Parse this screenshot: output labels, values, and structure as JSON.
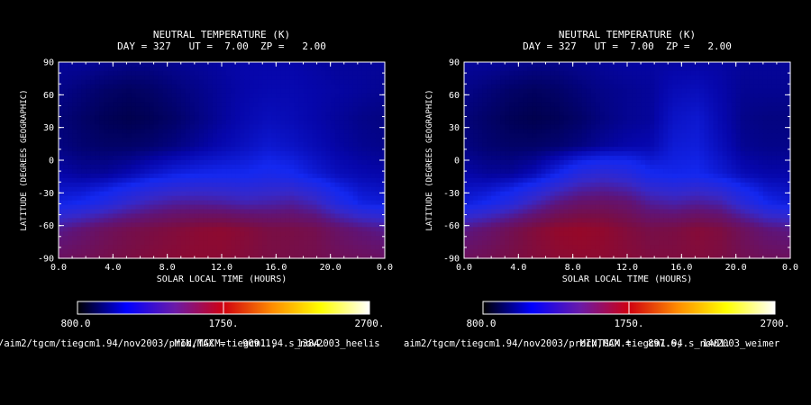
{
  "colorbar": {
    "min_label": "800.0",
    "mid_label": "1750.",
    "max_label": "2700.",
    "min": 800,
    "max": 2700,
    "stops": [
      "#000000",
      "#0000ff",
      "#6a1aa8",
      "#d00010",
      "#ff8c00",
      "#ffff00",
      "#ffffff"
    ]
  },
  "chart_data": [
    {
      "type": "heatmap",
      "title": "NEUTRAL TEMPERATURE (K)",
      "subtitle": "DAY = 327   UT =  7.00  ZP =   2.00",
      "xlabel": "SOLAR LOCAL TIME (HOURS)",
      "ylabel": "LATITUDE (DEGREES GEOGRAPHIC)",
      "x_ticks": [
        "0.0",
        "4.0",
        "8.0",
        "12.0",
        "16.0",
        "20.0",
        "0.0"
      ],
      "y_ticks": [
        "90",
        "60",
        "30",
        "0",
        "-30",
        "-60",
        "-90"
      ],
      "xlim": [
        0,
        24
      ],
      "ylim": [
        -90,
        90
      ],
      "min_max_label": "MIN,MAX =",
      "min_value": "909.1,",
      "max_value": "1384.",
      "min": 909.1,
      "max": 1384,
      "path_label": "/aim2/tgcm/tiegcm1.94/nov2003/proc/TGCM.tiegcm1.94.s_nov2003_heelis",
      "grid": [
        [
          0.1,
          0.1,
          0.09,
          0.08,
          0.08,
          0.09,
          0.1,
          0.11,
          0.12,
          0.12,
          0.12,
          0.11,
          0.1,
          0.1,
          0.1
        ],
        [
          0.08,
          0.06,
          0.04,
          0.03,
          0.04,
          0.06,
          0.08,
          0.1,
          0.12,
          0.13,
          0.13,
          0.12,
          0.11,
          0.1,
          0.09
        ],
        [
          0.06,
          0.04,
          0.02,
          0.01,
          0.02,
          0.04,
          0.07,
          0.1,
          0.13,
          0.15,
          0.14,
          0.12,
          0.1,
          0.08,
          0.07
        ],
        [
          0.07,
          0.05,
          0.04,
          0.04,
          0.05,
          0.07,
          0.1,
          0.13,
          0.16,
          0.19,
          0.17,
          0.14,
          0.11,
          0.09,
          0.08
        ],
        [
          0.12,
          0.1,
          0.1,
          0.13,
          0.18,
          0.22,
          0.24,
          0.25,
          0.25,
          0.28,
          0.26,
          0.2,
          0.15,
          0.13,
          0.12
        ],
        [
          0.22,
          0.25,
          0.32,
          0.42,
          0.5,
          0.55,
          0.56,
          0.54,
          0.5,
          0.52,
          0.55,
          0.48,
          0.32,
          0.22,
          0.2
        ],
        [
          0.6,
          0.68,
          0.76,
          0.82,
          0.86,
          0.9,
          0.94,
          0.96,
          0.92,
          0.86,
          0.85,
          0.82,
          0.72,
          0.65,
          0.6
        ],
        [
          0.75,
          0.78,
          0.82,
          0.86,
          0.9,
          0.93,
          0.95,
          0.94,
          0.9,
          0.86,
          0.84,
          0.82,
          0.78,
          0.76,
          0.74
        ]
      ]
    },
    {
      "type": "heatmap",
      "title": "NEUTRAL TEMPERATURE (K)",
      "subtitle": "DAY = 327   UT =  7.00  ZP =   2.00",
      "xlabel": "SOLAR LOCAL TIME (HOURS)",
      "ylabel": "LATITUDE (DEGREES GEOGRAPHIC)",
      "x_ticks": [
        "0.0",
        "4.0",
        "8.0",
        "12.0",
        "16.0",
        "20.0",
        "0.0"
      ],
      "y_ticks": [
        "90",
        "60",
        "30",
        "0",
        "-30",
        "-60",
        "-90"
      ],
      "xlim": [
        0,
        24
      ],
      "ylim": [
        -90,
        90
      ],
      "min_max_label": "MIN,MAX =",
      "min_value": "897.6,",
      "max_value": "1401.",
      "min": 897.6,
      "max": 1401,
      "path_label": "aim2/tgcm/tiegcm1.94/nov2003/proc/TGCM.tiegcm1.94.s_nov2003_weimer",
      "grid": [
        [
          0.1,
          0.1,
          0.09,
          0.08,
          0.08,
          0.09,
          0.1,
          0.11,
          0.11,
          0.11,
          0.11,
          0.11,
          0.1,
          0.1,
          0.1
        ],
        [
          0.08,
          0.06,
          0.04,
          0.03,
          0.04,
          0.06,
          0.08,
          0.09,
          0.1,
          0.14,
          0.15,
          0.12,
          0.09,
          0.09,
          0.09
        ],
        [
          0.06,
          0.04,
          0.02,
          0.01,
          0.02,
          0.04,
          0.07,
          0.09,
          0.1,
          0.17,
          0.19,
          0.13,
          0.08,
          0.07,
          0.07
        ],
        [
          0.07,
          0.05,
          0.04,
          0.04,
          0.05,
          0.07,
          0.1,
          0.12,
          0.13,
          0.2,
          0.21,
          0.15,
          0.09,
          0.08,
          0.08
        ],
        [
          0.12,
          0.1,
          0.1,
          0.14,
          0.24,
          0.36,
          0.4,
          0.36,
          0.26,
          0.24,
          0.25,
          0.2,
          0.14,
          0.12,
          0.12
        ],
        [
          0.2,
          0.25,
          0.34,
          0.48,
          0.62,
          0.7,
          0.72,
          0.68,
          0.56,
          0.52,
          0.56,
          0.52,
          0.36,
          0.24,
          0.2
        ],
        [
          0.62,
          0.7,
          0.8,
          0.9,
          0.98,
          1.0,
          0.97,
          0.9,
          0.84,
          0.86,
          0.92,
          0.88,
          0.76,
          0.66,
          0.62
        ],
        [
          0.76,
          0.8,
          0.85,
          0.9,
          0.94,
          0.96,
          0.95,
          0.92,
          0.88,
          0.88,
          0.9,
          0.87,
          0.8,
          0.77,
          0.76
        ]
      ]
    }
  ]
}
